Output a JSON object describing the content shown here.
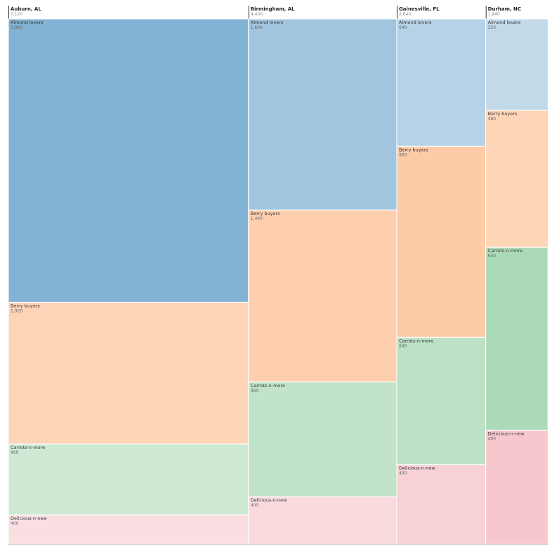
{
  "chart_data": {
    "type": "mekko",
    "columns": [
      {
        "name": "Auburn, AL",
        "total_label": "7,120",
        "total": 7120,
        "segments": [
          {
            "name": "Almond lovers",
            "value": 3840,
            "label": "3,840"
          },
          {
            "name": "Berry buyers",
            "value": 1920,
            "label": "1,920"
          },
          {
            "name": "Carrots-n-more",
            "value": 960,
            "label": "960"
          },
          {
            "name": "Delicious-n-new",
            "value": 400,
            "label": "400"
          }
        ]
      },
      {
        "name": "Birmingham, AL",
        "total_label": "4,400",
        "total": 4400,
        "segments": [
          {
            "name": "Almond lovers",
            "value": 1600,
            "label": "1,600"
          },
          {
            "name": "Berry buyers",
            "value": 1440,
            "label": "1,440"
          },
          {
            "name": "Carrots-n-more",
            "value": 960,
            "label": "960"
          },
          {
            "name": "Delicious-n-new",
            "value": 400,
            "label": "400"
          }
        ]
      },
      {
        "name": "Gainesville, FL",
        "total_label": "2,640",
        "total": 2640,
        "segments": [
          {
            "name": "Almond lovers",
            "value": 640,
            "label": "640"
          },
          {
            "name": "Berry buyers",
            "value": 960,
            "label": "960"
          },
          {
            "name": "Carrots-n-more",
            "value": 640,
            "label": "640"
          },
          {
            "name": "Delicious-n-new",
            "value": 400,
            "label": "400"
          }
        ]
      },
      {
        "name": "Durham, NC",
        "total_label": "1,840",
        "total": 1840,
        "segments": [
          {
            "name": "Almond lovers",
            "value": 320,
            "label": "320"
          },
          {
            "name": "Berry buyers",
            "value": 480,
            "label": "480"
          },
          {
            "name": "Carrots-n-more",
            "value": 640,
            "label": "640"
          },
          {
            "name": "Delicious-n-new",
            "value": 400,
            "label": "400"
          }
        ]
      }
    ],
    "colors": {
      "Almond lovers": "#2f7fb8",
      "Berry buyers": "#fd8d3c",
      "Carrots-n-more": "#41ab5d",
      "Delicious-n-new": "#e35a6a",
      "divider": "#333333",
      "cell_border": "#ffffff"
    }
  }
}
